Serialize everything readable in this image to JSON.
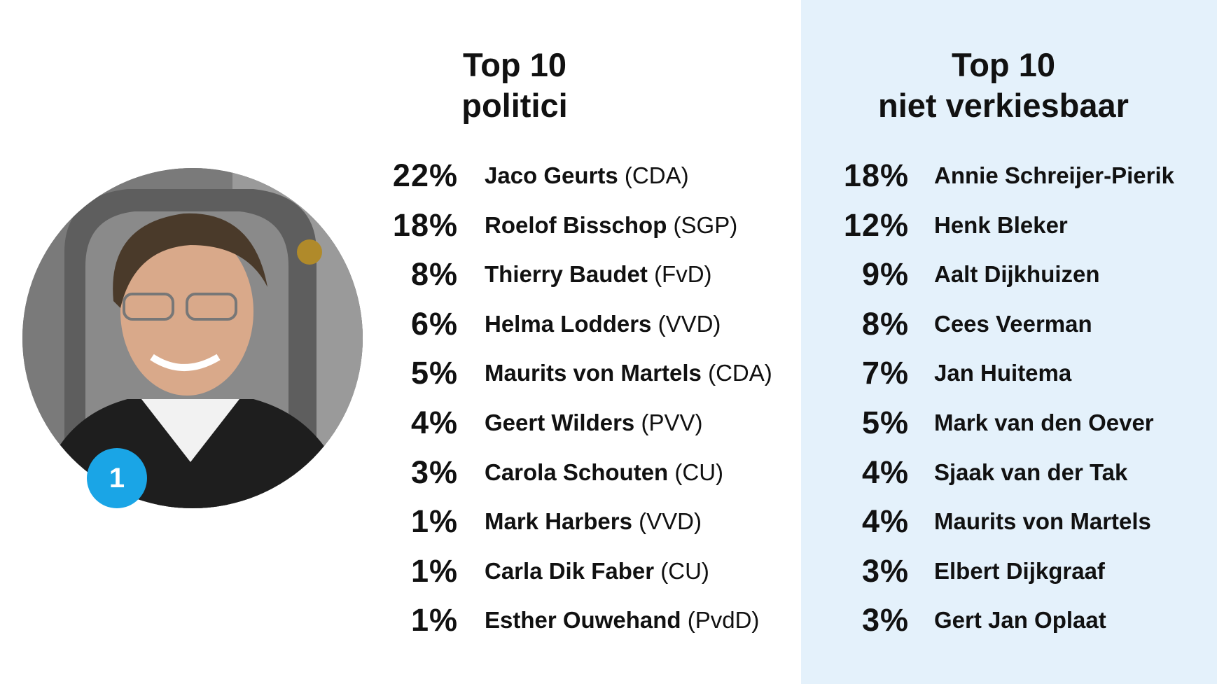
{
  "left": {
    "title_line1": "Top 10",
    "title_line2": "politici",
    "items": [
      {
        "pct": "22%",
        "name": "Jaco Geurts",
        "party": "(CDA)"
      },
      {
        "pct": "18%",
        "name": "Roelof Bisschop",
        "party": "(SGP)"
      },
      {
        "pct": "8%",
        "name": "Thierry Baudet",
        "party": "(FvD)"
      },
      {
        "pct": "6%",
        "name": "Helma Lodders",
        "party": "(VVD)"
      },
      {
        "pct": "5%",
        "name": "Maurits von Martels",
        "party": "(CDA)"
      },
      {
        "pct": "4%",
        "name": "Geert Wilders",
        "party": "(PVV)"
      },
      {
        "pct": "3%",
        "name": "Carola Schouten",
        "party": "(CU)"
      },
      {
        "pct": "1%",
        "name": "Mark Harbers",
        "party": "(VVD)"
      },
      {
        "pct": "1%",
        "name": "Carla Dik Faber",
        "party": "(CU)"
      },
      {
        "pct": "1%",
        "name": "Esther Ouwehand",
        "party": "(PvdD)"
      }
    ]
  },
  "right": {
    "title_line1": "Top 10",
    "title_line2": "niet verkiesbaar",
    "items": [
      {
        "pct": "18%",
        "name": "Annie Schreijer-Pierik"
      },
      {
        "pct": "12%",
        "name": "Henk Bleker"
      },
      {
        "pct": "9%",
        "name": "Aalt Dijkhuizen"
      },
      {
        "pct": "8%",
        "name": "Cees Veerman"
      },
      {
        "pct": "7%",
        "name": "Jan Huitema"
      },
      {
        "pct": "5%",
        "name": "Mark van den Oever"
      },
      {
        "pct": "4%",
        "name": "Sjaak van der Tak"
      },
      {
        "pct": "4%",
        "name": "Maurits von Martels"
      },
      {
        "pct": "3%",
        "name": "Elbert Dijkgraaf"
      },
      {
        "pct": "3%",
        "name": "Gert Jan Oplaat"
      }
    ]
  },
  "badge": {
    "rank": "1"
  },
  "colors": {
    "accent": "#1aa5e6",
    "panel": "#e4f1fb"
  }
}
